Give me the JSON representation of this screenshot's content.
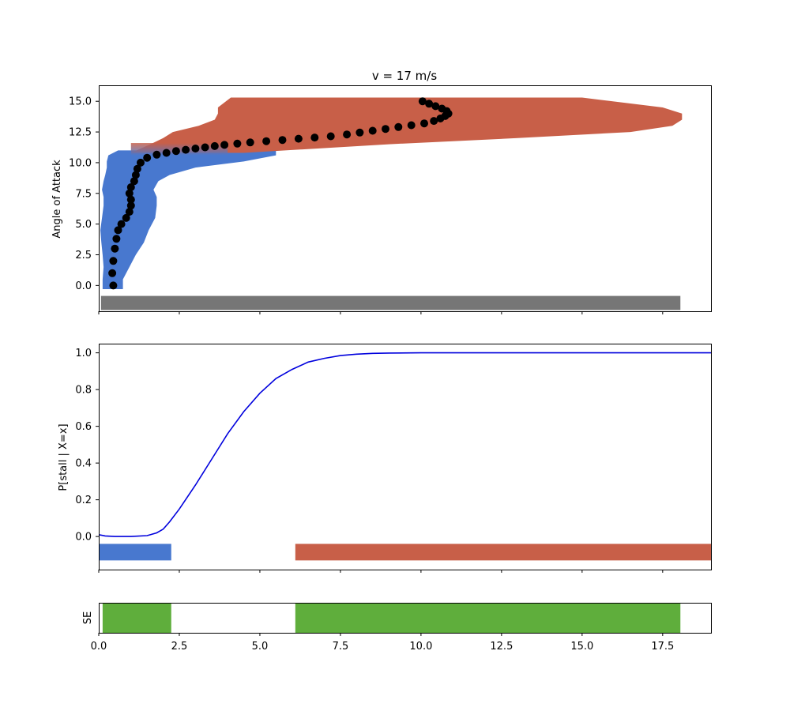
{
  "chart_data": [
    {
      "type": "area",
      "title": "v = 17 m/s",
      "ylabel": "Angle of Attack",
      "xlim": [
        0,
        19
      ],
      "ylim": [
        -2.1,
        16.3
      ],
      "yticks": [
        0.0,
        2.5,
        5.0,
        7.5,
        10.0,
        12.5,
        15.0
      ],
      "ytick_labels": [
        "0.0",
        "2.5",
        "5.0",
        "7.5",
        "10.0",
        "12.5",
        "15.0"
      ],
      "grid": false,
      "colors": {
        "normal": "#4878cf",
        "stall": "#c85f48",
        "trajectory": "#000000",
        "base_bar": "#767676"
      },
      "base_bar": {
        "x_start": 0.07,
        "x_end": 18.05,
        "y_low": -2.0,
        "y_high": -0.85
      },
      "blue_band": [
        {
          "y": -0.3,
          "left": 0.12,
          "right": 0.75
        },
        {
          "y": 0.5,
          "left": 0.12,
          "right": 0.75
        },
        {
          "y": 1.5,
          "left": 0.15,
          "right": 0.95
        },
        {
          "y": 2.5,
          "left": 0.12,
          "right": 1.15
        },
        {
          "y": 3.5,
          "left": 0.08,
          "right": 1.4
        },
        {
          "y": 4.5,
          "left": 0.05,
          "right": 1.55
        },
        {
          "y": 5.5,
          "left": 0.1,
          "right": 1.75
        },
        {
          "y": 6.5,
          "left": 0.15,
          "right": 1.8
        },
        {
          "y": 7.2,
          "left": 0.15,
          "right": 1.8
        },
        {
          "y": 7.8,
          "left": 0.1,
          "right": 1.7
        },
        {
          "y": 8.5,
          "left": 0.15,
          "right": 1.85
        },
        {
          "y": 9.0,
          "left": 0.2,
          "right": 2.2
        },
        {
          "y": 9.6,
          "left": 0.25,
          "right": 3.0
        },
        {
          "y": 10.1,
          "left": 0.25,
          "right": 4.5
        },
        {
          "y": 10.6,
          "left": 0.3,
          "right": 5.5
        },
        {
          "y": 11.0,
          "left": 0.6,
          "right": 5.5
        }
      ],
      "red_band": [
        {
          "y": 10.8,
          "left": 1.0,
          "right": 4.5
        },
        {
          "y": 11.5,
          "left": 1.6,
          "right": 9.0
        },
        {
          "y": 12.0,
          "left": 2.0,
          "right": 13.0
        },
        {
          "y": 12.5,
          "left": 2.3,
          "right": 16.5
        },
        {
          "y": 13.0,
          "left": 3.1,
          "right": 17.8
        },
        {
          "y": 13.5,
          "left": 3.6,
          "right": 18.1
        },
        {
          "y": 14.0,
          "left": 3.7,
          "right": 18.1
        },
        {
          "y": 14.5,
          "left": 3.7,
          "right": 17.5
        },
        {
          "y": 15.3,
          "left": 4.1,
          "right": 15.0
        }
      ],
      "trajectory": {
        "x": [
          0.45,
          0.42,
          0.45,
          0.5,
          0.55,
          0.6,
          0.7,
          0.85,
          0.95,
          1.0,
          1.0,
          0.95,
          1.0,
          1.1,
          1.15,
          1.2,
          1.3,
          1.5,
          1.8,
          2.1,
          2.4,
          2.7,
          3.0,
          3.3,
          3.6,
          3.9,
          4.3,
          4.7,
          5.2,
          5.7,
          6.2,
          6.7,
          7.2,
          7.7,
          8.1,
          8.5,
          8.9,
          9.3,
          9.7,
          10.1,
          10.4,
          10.6,
          10.75,
          10.85,
          10.8,
          10.65,
          10.45,
          10.25,
          10.05
        ],
        "y": [
          0.0,
          1.0,
          2.0,
          3.0,
          3.8,
          4.5,
          5.0,
          5.5,
          6.0,
          6.5,
          7.0,
          7.5,
          8.0,
          8.5,
          9.0,
          9.5,
          10.0,
          10.4,
          10.65,
          10.8,
          10.95,
          11.05,
          11.15,
          11.25,
          11.35,
          11.45,
          11.55,
          11.65,
          11.75,
          11.85,
          11.95,
          12.05,
          12.15,
          12.3,
          12.45,
          12.6,
          12.75,
          12.9,
          13.05,
          13.2,
          13.4,
          13.6,
          13.8,
          14.0,
          14.2,
          14.4,
          14.6,
          14.8,
          15.0
        ]
      }
    },
    {
      "type": "line",
      "ylabel": "P[stall | X=x]",
      "xlim": [
        0,
        19
      ],
      "ylim": [
        -0.18,
        1.05
      ],
      "yticks": [
        0.0,
        0.2,
        0.4,
        0.6,
        0.8,
        1.0
      ],
      "ytick_labels": [
        "0.0",
        "0.2",
        "0.4",
        "0.6",
        "0.8",
        "1.0"
      ],
      "grid": false,
      "series": [
        {
          "color": "#0000dd",
          "x": [
            0.0,
            0.2,
            0.5,
            1.0,
            1.5,
            1.8,
            2.0,
            2.2,
            2.5,
            3.0,
            3.5,
            4.0,
            4.5,
            5.0,
            5.5,
            6.0,
            6.5,
            7.0,
            7.5,
            8.0,
            8.5,
            9.0,
            10.0,
            11.0,
            12.0,
            14.0,
            16.0,
            19.0
          ],
          "y": [
            0.01,
            0.003,
            0.0,
            0.0,
            0.005,
            0.02,
            0.04,
            0.08,
            0.15,
            0.28,
            0.42,
            0.56,
            0.68,
            0.78,
            0.86,
            0.91,
            0.95,
            0.97,
            0.985,
            0.993,
            0.997,
            0.999,
            1.0,
            1.0,
            1.0,
            1.0,
            1.0,
            1.0
          ]
        }
      ],
      "bars": [
        {
          "class": "normal",
          "color": "#4878cf",
          "x_start": 0.0,
          "x_end": 2.25,
          "y_low": -0.13,
          "y_high": -0.04
        },
        {
          "class": "stall",
          "color": "#c85f48",
          "x_start": 6.1,
          "x_end": 19.0,
          "y_low": -0.13,
          "y_high": -0.04
        }
      ]
    },
    {
      "type": "bar",
      "ylabel": "SE",
      "xlim": [
        0,
        19
      ],
      "xticks": [
        0.0,
        2.5,
        5.0,
        7.5,
        10.0,
        12.5,
        15.0,
        17.5
      ],
      "xtick_labels": [
        "0.0",
        "2.5",
        "5.0",
        "7.5",
        "10.0",
        "12.5",
        "15.0",
        "17.5"
      ],
      "grid": false,
      "intervals": [
        {
          "color": "#5fae3c",
          "x_start": 0.12,
          "x_end": 2.25
        },
        {
          "color": "#5fae3c",
          "x_start": 6.1,
          "x_end": 18.05
        }
      ]
    }
  ]
}
